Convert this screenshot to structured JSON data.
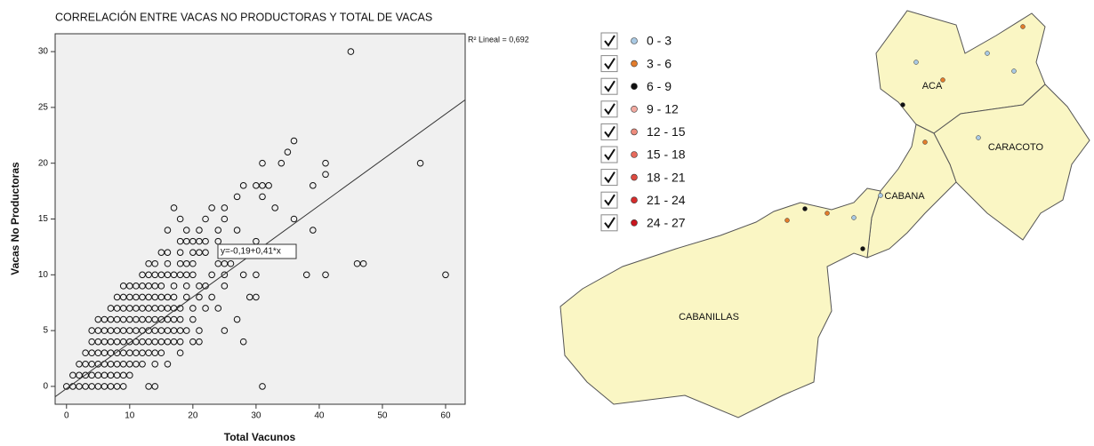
{
  "chart_data": {
    "type": "scatter",
    "title": "CORRELACIÓN ENTRE VACAS NO PRODUCTORAS Y TOTAL DE VACAS",
    "x_label": "Total Vacunos",
    "y_label": "Vacas No Productoras",
    "r2_label": "R² Lineal = 0,692",
    "fit_line": {
      "intercept": -0.19,
      "slope": 0.41,
      "label": "y=-0,19+0,41*x"
    },
    "xlim": [
      -1.8,
      63.1
    ],
    "xticks": [
      0,
      10,
      20,
      30,
      40,
      50,
      60
    ],
    "ylim": [
      -1.6,
      31.6
    ],
    "yticks": [
      0,
      5,
      10,
      15,
      20,
      25,
      30
    ],
    "x": [
      0,
      1,
      2,
      3,
      4,
      5,
      6,
      7,
      8,
      9,
      13,
      14,
      31,
      1,
      2,
      3,
      4,
      5,
      6,
      7,
      8,
      9,
      10,
      2,
      3,
      4,
      5,
      6,
      7,
      8,
      9,
      10,
      11,
      12,
      14,
      16,
      3,
      4,
      5,
      6,
      7,
      8,
      9,
      10,
      11,
      12,
      13,
      14,
      15,
      18,
      4,
      5,
      6,
      7,
      8,
      9,
      10,
      11,
      12,
      13,
      14,
      15,
      16,
      17,
      18,
      20,
      21,
      28,
      4,
      5,
      6,
      7,
      8,
      9,
      10,
      11,
      12,
      13,
      14,
      15,
      16,
      17,
      18,
      19,
      21,
      25,
      5,
      6,
      7,
      8,
      9,
      10,
      11,
      12,
      13,
      14,
      15,
      16,
      17,
      18,
      20,
      27,
      7,
      8,
      9,
      10,
      11,
      12,
      13,
      14,
      15,
      16,
      17,
      18,
      20,
      22,
      24,
      8,
      9,
      10,
      11,
      12,
      13,
      14,
      15,
      16,
      17,
      19,
      21,
      23,
      29,
      30,
      9,
      10,
      11,
      12,
      13,
      14,
      15,
      17,
      19,
      21,
      22,
      25,
      12,
      13,
      14,
      15,
      16,
      17,
      18,
      19,
      20,
      23,
      25,
      28,
      30,
      38,
      41,
      60,
      13,
      14,
      16,
      18,
      19,
      20,
      24,
      25,
      26,
      46,
      47,
      15,
      16,
      18,
      20,
      21,
      22,
      25,
      28,
      18,
      19,
      20,
      21,
      22,
      24,
      30,
      16,
      19,
      21,
      24,
      27,
      39,
      18,
      22,
      25,
      36,
      17,
      23,
      25,
      33,
      27,
      31,
      28,
      30,
      31,
      32,
      39,
      41,
      31,
      34,
      41,
      56,
      35,
      36,
      45
    ],
    "values": [
      0,
      0,
      0,
      0,
      0,
      0,
      0,
      0,
      0,
      0,
      0,
      0,
      0,
      1,
      1,
      1,
      1,
      1,
      1,
      1,
      1,
      1,
      1,
      2,
      2,
      2,
      2,
      2,
      2,
      2,
      2,
      2,
      2,
      2,
      2,
      2,
      3,
      3,
      3,
      3,
      3,
      3,
      3,
      3,
      3,
      3,
      3,
      3,
      3,
      3,
      4,
      4,
      4,
      4,
      4,
      4,
      4,
      4,
      4,
      4,
      4,
      4,
      4,
      4,
      4,
      4,
      4,
      4,
      5,
      5,
      5,
      5,
      5,
      5,
      5,
      5,
      5,
      5,
      5,
      5,
      5,
      5,
      5,
      5,
      5,
      5,
      6,
      6,
      6,
      6,
      6,
      6,
      6,
      6,
      6,
      6,
      6,
      6,
      6,
      6,
      6,
      6,
      7,
      7,
      7,
      7,
      7,
      7,
      7,
      7,
      7,
      7,
      7,
      7,
      7,
      7,
      7,
      8,
      8,
      8,
      8,
      8,
      8,
      8,
      8,
      8,
      8,
      8,
      8,
      8,
      8,
      8,
      9,
      9,
      9,
      9,
      9,
      9,
      9,
      9,
      9,
      9,
      9,
      9,
      10,
      10,
      10,
      10,
      10,
      10,
      10,
      10,
      10,
      10,
      10,
      10,
      10,
      10,
      10,
      10,
      11,
      11,
      11,
      11,
      11,
      11,
      11,
      11,
      11,
      11,
      11,
      12,
      12,
      12,
      12,
      12,
      12,
      12,
      12,
      13,
      13,
      13,
      13,
      13,
      13,
      13,
      14,
      14,
      14,
      14,
      14,
      14,
      15,
      15,
      15,
      15,
      16,
      16,
      16,
      16,
      17,
      17,
      18,
      18,
      18,
      18,
      18,
      19,
      20,
      20,
      20,
      20,
      21,
      22,
      30
    ]
  },
  "map": {
    "legend": [
      {
        "label": "0 - 3",
        "color": "#a9c9e3"
      },
      {
        "label": "3 - 6",
        "color": "#e27c2c"
      },
      {
        "label": "6 - 9",
        "color": "#111111"
      },
      {
        "label": "9 - 12",
        "color": "#f2a9a0"
      },
      {
        "label": "12 - 15",
        "color": "#ee8c7d"
      },
      {
        "label": "15 - 18",
        "color": "#e66a5c"
      },
      {
        "label": "18 - 21",
        "color": "#dd4a40"
      },
      {
        "label": "21 - 24",
        "color": "#d62c2c"
      },
      {
        "label": "24 - 27",
        "color": "#c9151e"
      }
    ],
    "regions": [
      "ACA",
      "CARACOTO",
      "CABANA",
      "CABANILLAS"
    ]
  }
}
